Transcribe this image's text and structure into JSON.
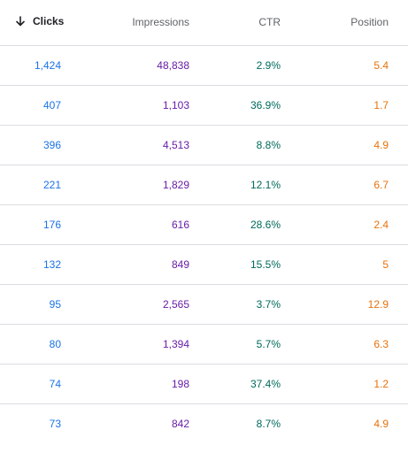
{
  "colors": {
    "clicks": "#1a73e8",
    "impressions": "#681da8",
    "ctr": "#00695c",
    "position": "#e8710a"
  },
  "headers": {
    "clicks": "Clicks",
    "impressions": "Impressions",
    "ctr": "CTR",
    "position": "Position",
    "sort_icon": "arrow-down-icon"
  },
  "rows": [
    {
      "clicks": "1,424",
      "impressions": "48,838",
      "ctr": "2.9%",
      "position": "5.4"
    },
    {
      "clicks": "407",
      "impressions": "1,103",
      "ctr": "36.9%",
      "position": "1.7"
    },
    {
      "clicks": "396",
      "impressions": "4,513",
      "ctr": "8.8%",
      "position": "4.9"
    },
    {
      "clicks": "221",
      "impressions": "1,829",
      "ctr": "12.1%",
      "position": "6.7"
    },
    {
      "clicks": "176",
      "impressions": "616",
      "ctr": "28.6%",
      "position": "2.4"
    },
    {
      "clicks": "132",
      "impressions": "849",
      "ctr": "15.5%",
      "position": "5"
    },
    {
      "clicks": "95",
      "impressions": "2,565",
      "ctr": "3.7%",
      "position": "12.9"
    },
    {
      "clicks": "80",
      "impressions": "1,394",
      "ctr": "5.7%",
      "position": "6.3"
    },
    {
      "clicks": "74",
      "impressions": "198",
      "ctr": "37.4%",
      "position": "1.2"
    },
    {
      "clicks": "73",
      "impressions": "842",
      "ctr": "8.7%",
      "position": "4.9"
    }
  ]
}
